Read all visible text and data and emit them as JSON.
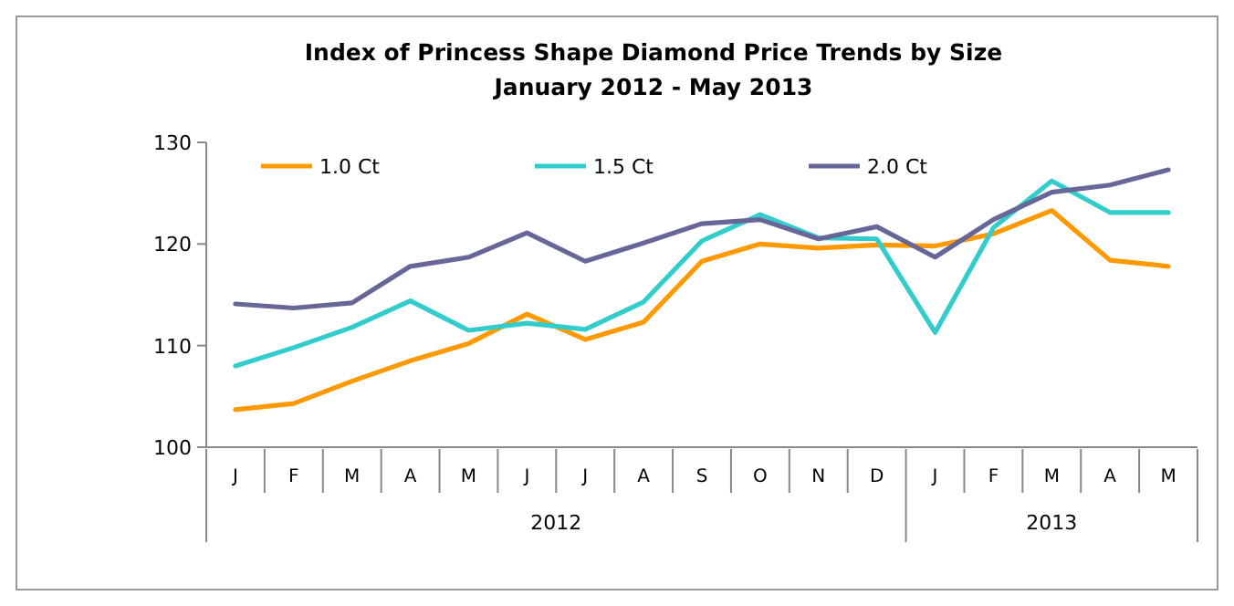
{
  "chart_data": {
    "type": "line",
    "title": "Index of Princess Shape Diamond Price Trends by Size",
    "subtitle": "January 2012 - May 2013",
    "categories": [
      "J",
      "F",
      "M",
      "A",
      "M",
      "J",
      "J",
      "A",
      "S",
      "O",
      "N",
      "D",
      "J",
      "F",
      "M",
      "A",
      "M"
    ],
    "series": [
      {
        "name": "1.0 Ct",
        "color": "#ff9900",
        "values": [
          103.7,
          104.3,
          106.5,
          108.5,
          110.2,
          113.1,
          110.6,
          112.3,
          118.3,
          120.0,
          119.6,
          119.9,
          119.8,
          121.0,
          123.3,
          118.4,
          117.8
        ]
      },
      {
        "name": "1.5 Ct",
        "color": "#33cccc",
        "values": [
          108.0,
          109.8,
          111.8,
          114.4,
          111.5,
          112.2,
          111.6,
          114.3,
          120.3,
          122.9,
          120.6,
          120.5,
          111.3,
          121.6,
          126.2,
          123.1,
          123.1
        ]
      },
      {
        "name": "2.0 Ct",
        "color": "#666699",
        "values": [
          114.1,
          113.7,
          114.2,
          117.8,
          118.7,
          121.1,
          118.3,
          120.1,
          122.0,
          122.4,
          120.5,
          121.7,
          118.7,
          122.4,
          125.1,
          125.8,
          127.3
        ]
      }
    ],
    "ylim": [
      100,
      130
    ],
    "yticks": [
      100,
      110,
      120,
      130
    ],
    "grid": false,
    "legend": "top",
    "marker": "none",
    "line_style": "solid",
    "annotations": [
      "2012",
      "2013"
    ]
  }
}
